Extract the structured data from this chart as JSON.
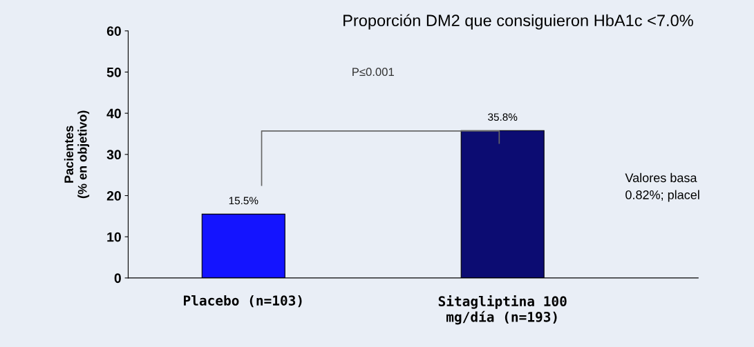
{
  "chart_data": {
    "type": "bar",
    "title": "Proporción DM2 que consiguieron HbA1c <7.0%",
    "ylabel": "Pacientes\n(% en objetivo)",
    "categories": [
      "Placebo (n=103)",
      "Sitagliptina 100\nmg/día (n=193)"
    ],
    "values": [
      15.5,
      35.8
    ],
    "colors": [
      "#1414ff",
      "#0c0c72"
    ],
    "value_labels": [
      "15.5%",
      "35.8%"
    ],
    "ylim": [
      0,
      60
    ],
    "yticks": [
      0,
      10,
      20,
      30,
      40,
      50,
      60
    ],
    "grid": false,
    "legend": false,
    "annotations": [
      "P≤0.001",
      "Valores basa\n0.82%; placel"
    ]
  }
}
